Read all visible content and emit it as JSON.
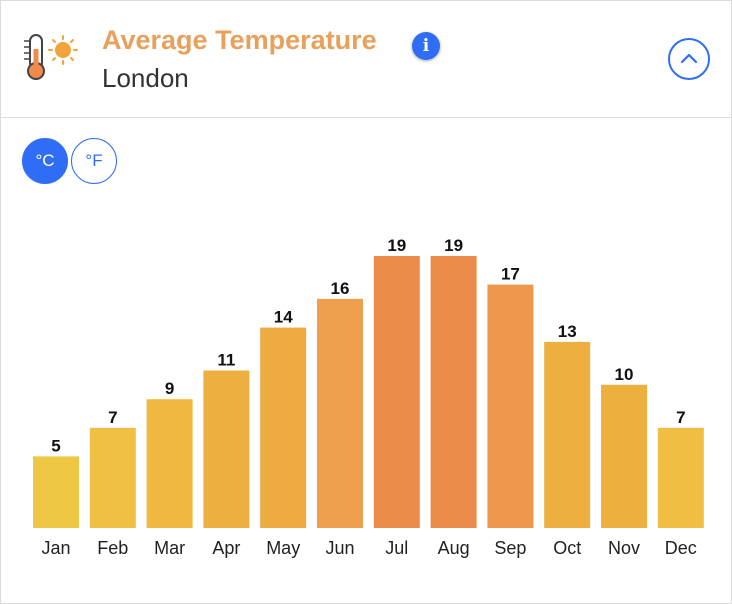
{
  "header": {
    "title": "Average Temperature",
    "subtitle": "London",
    "icons": {
      "title": "thermometer-sun-icon",
      "info": "info-icon",
      "collapse": "chevron-up-icon"
    }
  },
  "units": {
    "celsius": "°C",
    "fahrenheit": "°F",
    "selected": "celsius"
  },
  "colors": {
    "accent": "#2f6df6",
    "title": "#e8a05a"
  },
  "chart_data": {
    "type": "bar",
    "categories": [
      "Jan",
      "Feb",
      "Mar",
      "Apr",
      "May",
      "Jun",
      "Jul",
      "Aug",
      "Sep",
      "Oct",
      "Nov",
      "Dec"
    ],
    "values": [
      5,
      7,
      9,
      11,
      14,
      16,
      19,
      19,
      17,
      13,
      10,
      7
    ],
    "bar_colors": [
      "#eec844",
      "#efc043",
      "#eeb841",
      "#edb040",
      "#edab41",
      "#efa04f",
      "#ec8c4a",
      "#ec8c4a",
      "#ef984b",
      "#edaf3f",
      "#edb03d",
      "#efbe42"
    ],
    "ylim": [
      0,
      19
    ],
    "grid": false,
    "data_labels": true
  }
}
